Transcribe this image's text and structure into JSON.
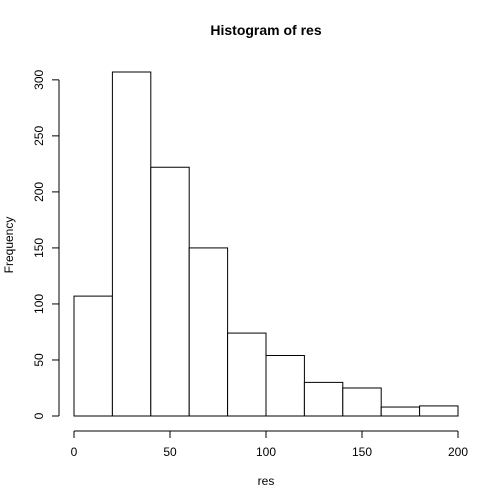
{
  "chart_data": {
    "type": "bar",
    "title": "Histogram of res",
    "xlabel": "res",
    "ylabel": "Frequency",
    "bins": [
      {
        "from": 0,
        "to": 20,
        "count": 107
      },
      {
        "from": 20,
        "to": 40,
        "count": 307
      },
      {
        "from": 40,
        "to": 60,
        "count": 222
      },
      {
        "from": 60,
        "to": 80,
        "count": 150
      },
      {
        "from": 80,
        "to": 100,
        "count": 74
      },
      {
        "from": 100,
        "to": 120,
        "count": 54
      },
      {
        "from": 120,
        "to": 140,
        "count": 30
      },
      {
        "from": 140,
        "to": 160,
        "count": 25
      },
      {
        "from": 160,
        "to": 180,
        "count": 8
      },
      {
        "from": 180,
        "to": 200,
        "count": 9
      }
    ],
    "xlim": [
      0,
      200
    ],
    "ylim": [
      0,
      307
    ],
    "x_ticks": [
      "0",
      "50",
      "100",
      "150",
      "200"
    ],
    "y_ticks": [
      "0",
      "50",
      "100",
      "150",
      "200",
      "250",
      "300"
    ],
    "grid": false,
    "bar_fill": "#ffffff",
    "bar_stroke": "#000000"
  }
}
